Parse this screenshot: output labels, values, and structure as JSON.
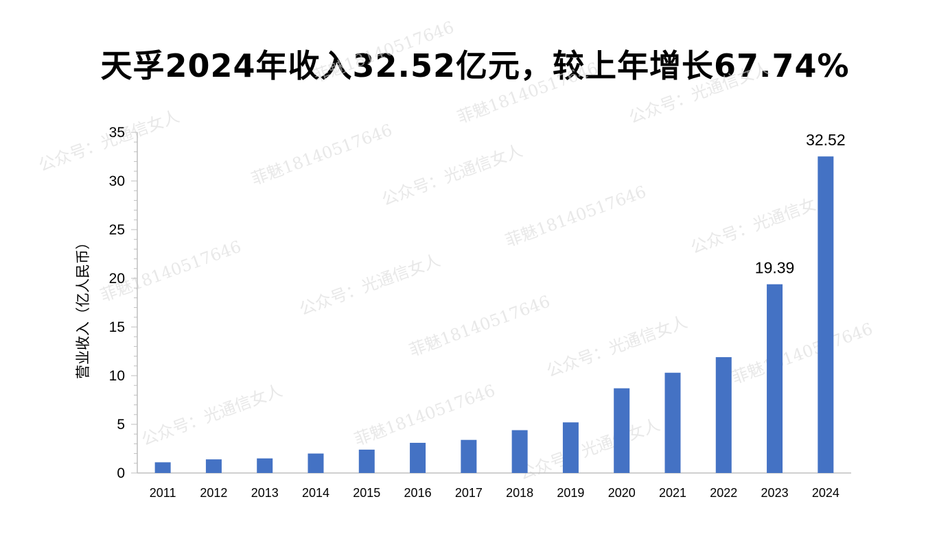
{
  "chart_data": {
    "type": "bar",
    "title": "天孚2024年收入32.52亿元，较上年增长67.74%",
    "ylabel": "营业收入（亿人民币）",
    "xlabel": "",
    "categories": [
      "2011",
      "2012",
      "2013",
      "2014",
      "2015",
      "2016",
      "2017",
      "2018",
      "2019",
      "2020",
      "2021",
      "2022",
      "2023",
      "2024"
    ],
    "values": [
      1.1,
      1.4,
      1.5,
      2.0,
      2.4,
      3.1,
      3.4,
      4.4,
      5.2,
      8.7,
      10.3,
      11.9,
      19.39,
      32.52
    ],
    "data_labels": {
      "12": "19.39",
      "13": "32.52"
    },
    "ylim": [
      0,
      35
    ],
    "yticks": [
      0,
      5,
      10,
      15,
      20,
      25,
      30,
      35
    ],
    "bar_color": "#4472c4",
    "grid": false,
    "legend": "none"
  },
  "watermarks": [
    "公众号：光通信女人",
    "菲魅18140517646"
  ]
}
